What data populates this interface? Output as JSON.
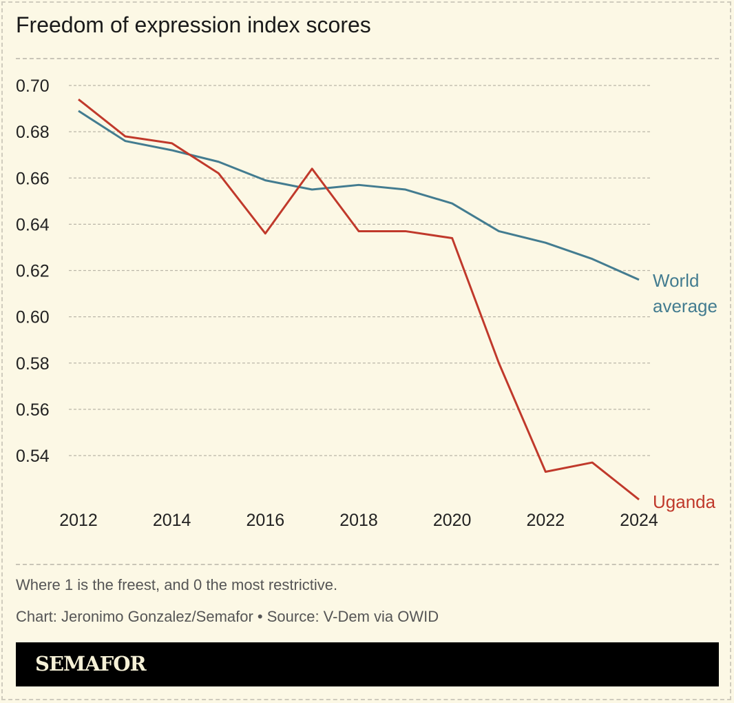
{
  "chart_data": {
    "type": "line",
    "title": "Freedom of expression index scores",
    "x": [
      2012,
      2013,
      2014,
      2015,
      2016,
      2017,
      2018,
      2019,
      2020,
      2021,
      2022,
      2023,
      2024
    ],
    "x_ticks": [
      "2012",
      "2014",
      "2016",
      "2018",
      "2020",
      "2022",
      "2024"
    ],
    "y_ticks": [
      "0.70",
      "0.68",
      "0.66",
      "0.64",
      "0.62",
      "0.60",
      "0.58",
      "0.56",
      "0.54"
    ],
    "ylim": [
      0.52,
      0.7
    ],
    "xlim": [
      2012,
      2024
    ],
    "grid": "horizontal dashed",
    "series": [
      {
        "name": "World average",
        "label_lines": [
          "World",
          "average"
        ],
        "color": "#437c90",
        "values": [
          0.689,
          0.676,
          0.672,
          0.667,
          0.659,
          0.655,
          0.657,
          0.655,
          0.649,
          0.637,
          0.632,
          0.625,
          0.616
        ]
      },
      {
        "name": "Uganda",
        "label_lines": [
          "Uganda"
        ],
        "color": "#c0392b",
        "values": [
          0.694,
          0.678,
          0.675,
          0.662,
          0.636,
          0.664,
          0.637,
          0.637,
          0.634,
          0.58,
          0.533,
          0.537,
          0.521
        ]
      }
    ]
  },
  "footer": {
    "note": "Where 1 is the freest, and 0 the most restrictive.",
    "credit": "Chart: Jeronimo Gonzalez/Semafor • Source: V-Dem via OWID",
    "brand": "SEMAFOR"
  }
}
